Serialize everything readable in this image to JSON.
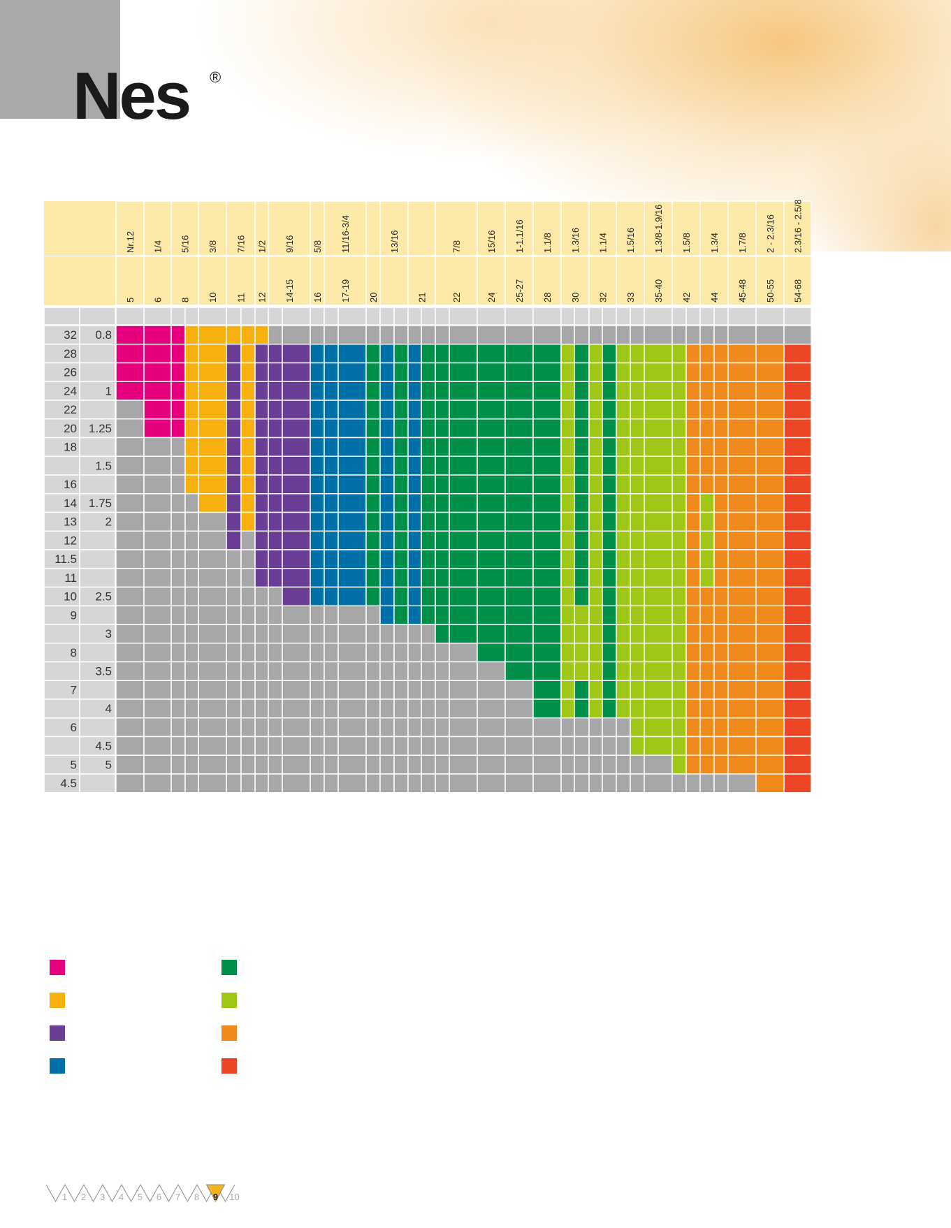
{
  "brand": {
    "name": "Nes",
    "reg": "®"
  },
  "colors": {
    "pink": "#e6007e",
    "yellow": "#f7b00e",
    "purple": "#6a3d96",
    "blue": "#0070a8",
    "green": "#00904a",
    "lime": "#9fc718",
    "orange": "#f18a1d",
    "red": "#ec4624",
    "grey": "#a7a7a9",
    "light_grey": "#d6d6d7",
    "header_yellow": "#fdeaa9"
  },
  "table": {
    "inch_labels": [
      "Nr.12",
      "1/4",
      "5/16",
      "3/8",
      "7/16",
      "1/2",
      "9/16",
      "5/8",
      "11/16-3/4",
      "",
      "13/16",
      "",
      "7/8",
      "15/16",
      "1-1.1/16",
      "1.1/8",
      "1.3/16",
      "1.1/4",
      "1.5/16",
      "1.3/8-1.9/16",
      "1.5/8",
      "1.3/4",
      "1.7/8",
      "2 - 2.3/16",
      "2.3/16 - 2.5/8"
    ],
    "mm_labels": [
      "5",
      "6",
      "8",
      "10",
      "11",
      "12",
      "14-15",
      "16",
      "17-19",
      "20",
      "",
      "21",
      "22",
      "24",
      "25-27",
      "28",
      "30",
      "32",
      "33",
      "35-40",
      "42",
      "44",
      "45-48",
      "50-55",
      "54-68"
    ],
    "row_labels_left": [
      "32",
      "28",
      "26",
      "24",
      "22",
      "20",
      "18",
      "",
      "16",
      "14",
      "13",
      "12",
      "11.5",
      "11",
      "10",
      "9",
      "",
      "8",
      "",
      "7",
      "",
      "6",
      "",
      "5",
      "4.5"
    ],
    "row_labels_right": [
      "0.8",
      "",
      "",
      "1",
      "",
      "1.25",
      "",
      "1.5",
      "",
      "1.75",
      "2",
      "",
      "",
      "",
      "2.5",
      "",
      "3",
      "",
      "3.5",
      "",
      "4",
      "",
      "4.5",
      "5",
      ""
    ]
  },
  "legend": {
    "left": [
      "pink",
      "yellow",
      "purple",
      "blue"
    ],
    "right": [
      "green",
      "lime",
      "orange",
      "red"
    ]
  },
  "pager": {
    "pages": [
      "1",
      "2",
      "3",
      "4",
      "5",
      "6",
      "7",
      "8",
      "9",
      "10"
    ],
    "current": "9"
  }
}
